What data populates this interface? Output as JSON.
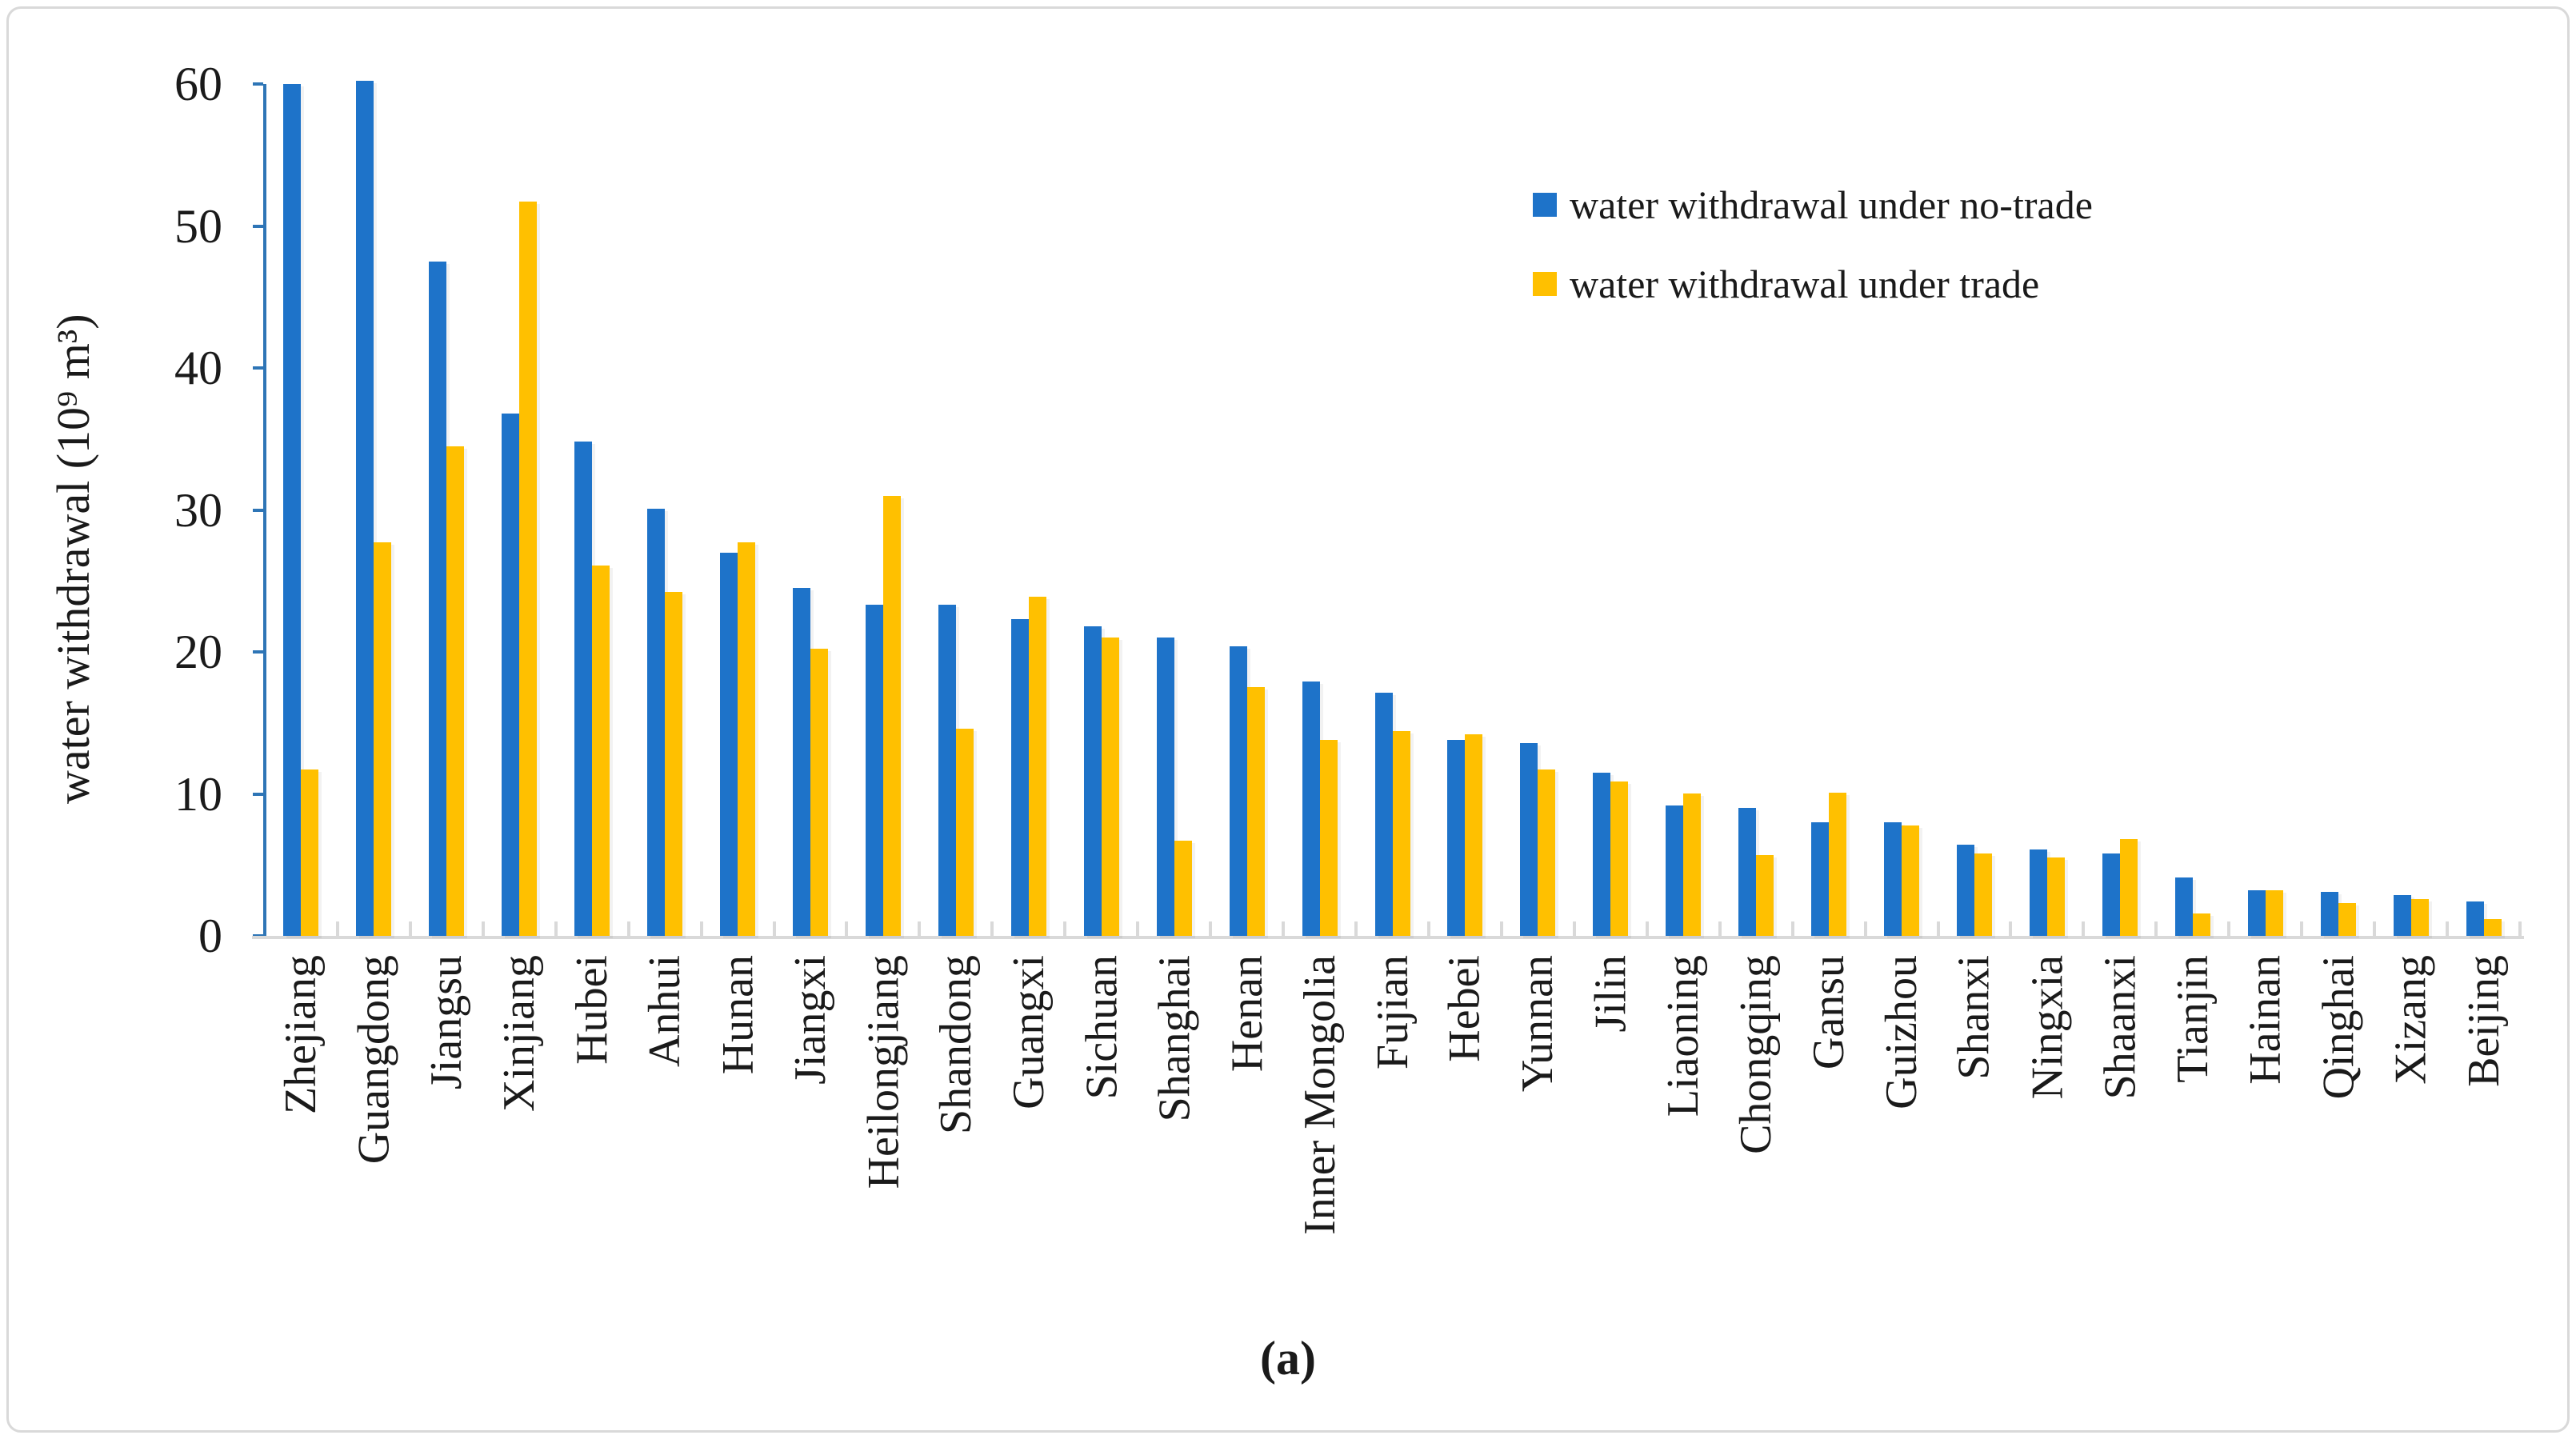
{
  "caption": {
    "label": "(a)"
  },
  "colors": {
    "series_no_trade": "#1e73c9",
    "series_trade": "#ffc000",
    "y_axis": "#2e75b6",
    "x_axis": "#d9d9d9",
    "frame_border": "#d9d9d9",
    "text": "#1a1a1a"
  },
  "chart_data": {
    "type": "bar",
    "title": "",
    "xlabel": "",
    "ylabel": "water withdrawal  (10⁹ m³)",
    "ylim": [
      0,
      60
    ],
    "yticks": [
      0,
      10,
      20,
      30,
      40,
      50,
      60
    ],
    "grid": false,
    "legend_position": "upper-right-inside",
    "categories": [
      "Zhejiang",
      "Guangdong",
      "Jiangsu",
      "Xinjiang",
      "Hubei",
      "Anhui",
      "Hunan",
      "Jiangxi",
      "Heilongjiang",
      "Shandong",
      "Guangxi",
      "Sichuan",
      "Shanghai",
      "Henan",
      "Inner Mongolia",
      "Fujian",
      "Hebei",
      "Yunnan",
      "Jilin",
      "Liaoning",
      "Chongqing",
      "Gansu",
      "Guizhou",
      "Shanxi",
      "Ningxia",
      "Shaanxi",
      "Tianjin",
      "Hainan",
      "Qinghai",
      "Xizang",
      "Beijing"
    ],
    "series": [
      {
        "name": "water withdrawal under no-trade",
        "color": "#1e73c9",
        "values": [
          60,
          60.2,
          47.5,
          36.8,
          34.8,
          30.1,
          27,
          24.5,
          23.3,
          23.3,
          22.3,
          21.8,
          21,
          20.4,
          17.9,
          17.1,
          13.8,
          13.6,
          11.5,
          9.2,
          9,
          8,
          8,
          6.4,
          6.1,
          5.8,
          4.1,
          3.2,
          3.1,
          2.9,
          2.4
        ]
      },
      {
        "name": "water withdrawal under trade",
        "color": "#ffc000",
        "values": [
          11.7,
          27.7,
          34.5,
          51.7,
          26.1,
          24.2,
          27.7,
          20.2,
          31,
          14.6,
          23.9,
          21,
          6.7,
          17.5,
          13.8,
          14.4,
          14.2,
          11.7,
          10.9,
          10,
          5.7,
          10.1,
          7.8,
          5.8,
          5.5,
          6.8,
          1.6,
          3.2,
          2.3,
          2.6,
          1.2
        ]
      }
    ]
  }
}
